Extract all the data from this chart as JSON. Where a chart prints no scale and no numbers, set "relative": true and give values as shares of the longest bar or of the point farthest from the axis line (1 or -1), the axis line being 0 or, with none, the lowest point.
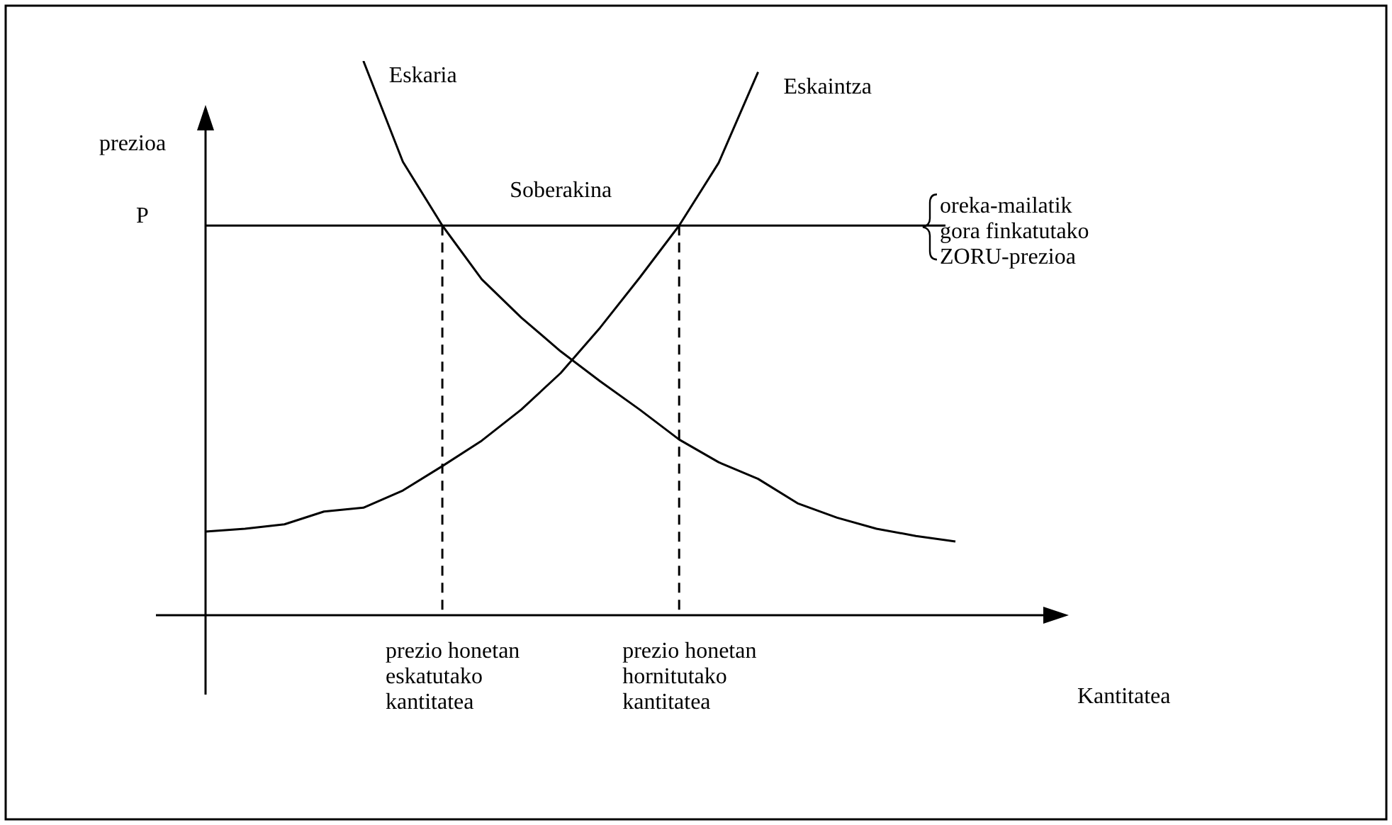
{
  "chart_data": {
    "type": "line",
    "relative": true,
    "ylabel": "prezioa",
    "tick_labels": false,
    "grid": false,
    "legend": false,
    "marker": "none",
    "line_style": "solid",
    "categories": [
      null,
      null,
      null,
      null,
      null,
      null,
      null,
      null,
      null,
      null,
      null,
      null,
      null,
      null,
      null,
      null,
      null,
      null,
      null,
      null
    ],
    "series": [
      {
        "name": "Eskaria",
        "color": "#000000",
        "values": [
          null,
          null,
          null,
          null,
          1.0,
          0.818,
          0.703,
          0.606,
          0.537,
          0.476,
          0.422,
          0.371,
          0.317,
          0.276,
          0.246,
          0.202,
          0.176,
          0.156,
          0.143,
          0.133
        ]
      },
      {
        "name": "Eskaintza",
        "color": "#000000",
        "values": [
          0.151,
          0.156,
          0.164,
          0.187,
          0.194,
          0.225,
          0.269,
          0.315,
          0.371,
          0.437,
          0.519,
          0.609,
          0.703,
          0.816,
          0.98,
          null,
          null,
          null,
          null,
          null
        ]
      }
    ],
    "ref_lines": [
      {
        "axis": "y",
        "value": 0.703,
        "label": "P"
      },
      {
        "axis": "x",
        "label": "prezio honetan\neskatutako\nkantitatea",
        "line_style": "dashed"
      },
      {
        "axis": "x",
        "label": "prezio honetan\nhornitutako\nkantitatea",
        "line_style": "dashed"
      }
    ],
    "annotations": [
      "Soberakina",
      "oreka-mailatik\ngora finkatutako\nZORU-prezioa",
      "Kantitatea"
    ]
  }
}
